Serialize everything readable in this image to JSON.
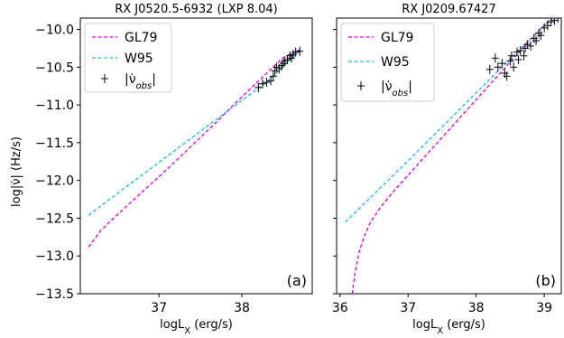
{
  "ylabel_shared": "log|ν̇| (Hz/s)",
  "chart_data": [
    {
      "type": "line",
      "title": "RX J0520.5-6932 (LXP 8.04)",
      "panel_label": "(a)",
      "xlabel": "logL",
      "xlabel_sub": "X",
      "xlabel_unit": " (erg/s)",
      "ylabel": "log|ν̇| (Hz/s)",
      "xlim": [
        36.05,
        38.85
      ],
      "ylim": [
        -13.5,
        -9.85
      ],
      "xticks": [
        37,
        38
      ],
      "yticks": [
        -13.5,
        -13.0,
        -12.5,
        -12.0,
        -11.5,
        -11.0,
        -10.5,
        -10.0
      ],
      "grid": false,
      "legend_position": "top-left",
      "series": [
        {
          "name": "GL79",
          "style": "dashed",
          "color": "#dd00dd",
          "x": [
            36.15,
            36.3,
            36.5,
            36.7,
            36.9,
            37.1,
            37.3,
            37.5,
            37.7,
            37.9,
            38.1,
            38.3,
            38.5,
            38.7
          ],
          "y": [
            -12.88,
            -12.66,
            -12.45,
            -12.25,
            -12.05,
            -11.85,
            -11.64,
            -11.43,
            -11.22,
            -11.0,
            -10.79,
            -10.58,
            -10.37,
            -10.27
          ]
        },
        {
          "name": "W95",
          "style": "dashed",
          "color": "#17becf",
          "x": [
            36.15,
            36.5,
            37.0,
            37.5,
            38.0,
            38.3,
            38.7
          ],
          "y": [
            -12.46,
            -12.17,
            -11.76,
            -11.35,
            -10.94,
            -10.7,
            -10.28
          ]
        },
        {
          "name": "|ν̇obs|",
          "style": "markers",
          "color": "#000000",
          "x": [
            38.2,
            38.25,
            38.3,
            38.35,
            38.38,
            38.4,
            38.42,
            38.45,
            38.48,
            38.5,
            38.52,
            38.55,
            38.58,
            38.6,
            38.62,
            38.65,
            38.7
          ],
          "y": [
            -10.77,
            -10.72,
            -10.7,
            -10.68,
            -10.62,
            -10.55,
            -10.5,
            -10.52,
            -10.48,
            -10.45,
            -10.42,
            -10.4,
            -10.35,
            -10.38,
            -10.33,
            -10.3,
            -10.29
          ]
        }
      ]
    },
    {
      "type": "line",
      "title": "RX J0209.67427",
      "panel_label": "(b)",
      "xlabel": "logL",
      "xlabel_sub": "X",
      "xlabel_unit": " (erg/s)",
      "xlim": [
        35.95,
        39.25
      ],
      "ylim": [
        -13.5,
        -9.85
      ],
      "xticks": [
        36,
        37,
        38,
        39
      ],
      "yticks": [
        -13.5,
        -13.0,
        -12.5,
        -12.0,
        -11.5,
        -11.0,
        -10.5,
        -10.0
      ],
      "grid": false,
      "legend_position": "top-left",
      "series": [
        {
          "name": "GL79",
          "style": "dashed",
          "color": "#dd00dd",
          "x": [
            36.18,
            36.22,
            36.28,
            36.35,
            36.45,
            36.6,
            36.8,
            37.0,
            37.3,
            37.6,
            37.9,
            38.2,
            38.5,
            38.8,
            39.1,
            39.2
          ],
          "y": [
            -13.5,
            -13.22,
            -12.95,
            -12.75,
            -12.55,
            -12.35,
            -12.13,
            -11.93,
            -11.63,
            -11.33,
            -11.03,
            -10.73,
            -10.43,
            -10.13,
            -9.85,
            -9.8
          ]
        },
        {
          "name": "W95",
          "style": "dashed",
          "color": "#17becf",
          "x": [
            36.08,
            36.5,
            37.0,
            37.5,
            38.0,
            38.5,
            39.0,
            39.2
          ],
          "y": [
            -12.55,
            -12.18,
            -11.74,
            -11.29,
            -10.84,
            -10.39,
            -9.95,
            -9.8
          ]
        },
        {
          "name": "|ν̇obs|",
          "style": "markers",
          "color": "#000000",
          "x": [
            38.2,
            38.28,
            38.32,
            38.38,
            38.42,
            38.45,
            38.5,
            38.52,
            38.55,
            38.6,
            38.62,
            38.65,
            38.7,
            38.72,
            38.75,
            38.8,
            38.85,
            38.88,
            38.92,
            38.95,
            39.0,
            39.05,
            39.1,
            39.15,
            39.2
          ],
          "y": [
            -10.53,
            -10.38,
            -10.5,
            -10.45,
            -10.58,
            -10.62,
            -10.42,
            -10.35,
            -10.5,
            -10.3,
            -10.4,
            -10.28,
            -10.35,
            -10.25,
            -10.2,
            -10.22,
            -10.12,
            -10.15,
            -10.05,
            -10.08,
            -9.98,
            -9.95,
            -9.9,
            -9.88,
            -9.85
          ]
        }
      ]
    }
  ]
}
